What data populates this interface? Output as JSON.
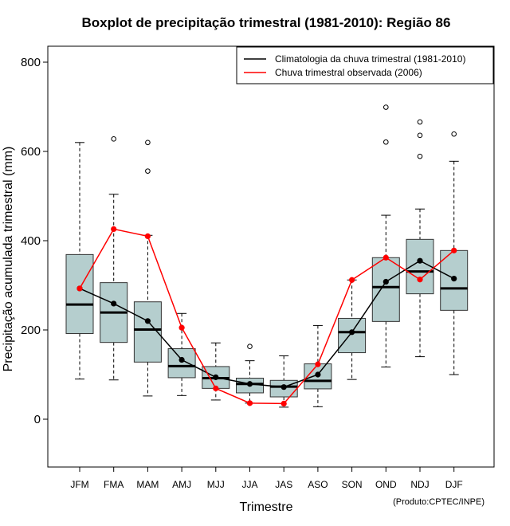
{
  "chart_data": {
    "type": "boxplot",
    "title": "Boxplot de precipitação trimestral (1981-2010): Região 86",
    "xlabel": "Trimestre",
    "ylabel": "Precipitação acumulada trimestral (mm)",
    "credit": "(Produto:CPTEC/INPE)",
    "ylim": [
      -110,
      830
    ],
    "yticks": [
      0,
      200,
      400,
      600,
      800
    ],
    "categories": [
      "JFM",
      "FMA",
      "MAM",
      "AMJ",
      "MJJ",
      "JJA",
      "JAS",
      "ASO",
      "SON",
      "OND",
      "NDJ",
      "DJF"
    ],
    "boxes": [
      {
        "whisker_low": 90,
        "q1": 192,
        "median": 257,
        "q3": 369,
        "whisker_high": 620,
        "outliers": []
      },
      {
        "whisker_low": 88,
        "q1": 172,
        "median": 239,
        "q3": 306,
        "whisker_high": 504,
        "outliers": [
          628
        ]
      },
      {
        "whisker_low": 52,
        "q1": 128,
        "median": 201,
        "q3": 263,
        "whisker_high": 412,
        "outliers": [
          556,
          620
        ]
      },
      {
        "whisker_low": 53,
        "q1": 93,
        "median": 119,
        "q3": 158,
        "whisker_high": 237,
        "outliers": []
      },
      {
        "whisker_low": 43,
        "q1": 69,
        "median": 92,
        "q3": 118,
        "whisker_high": 171,
        "outliers": []
      },
      {
        "whisker_low": 36,
        "q1": 59,
        "median": 79,
        "q3": 92,
        "whisker_high": 131,
        "outliers": [
          163
        ]
      },
      {
        "whisker_low": 27,
        "q1": 50,
        "median": 73,
        "q3": 87,
        "whisker_high": 142,
        "outliers": []
      },
      {
        "whisker_low": 28,
        "q1": 68,
        "median": 86,
        "q3": 124,
        "whisker_high": 210,
        "outliers": []
      },
      {
        "whisker_low": 89,
        "q1": 149,
        "median": 195,
        "q3": 226,
        "whisker_high": 312,
        "outliers": []
      },
      {
        "whisker_low": 117,
        "q1": 219,
        "median": 296,
        "q3": 362,
        "whisker_high": 457,
        "outliers": [
          621,
          699
        ]
      },
      {
        "whisker_low": 140,
        "q1": 281,
        "median": 331,
        "q3": 403,
        "whisker_high": 471,
        "outliers": [
          589,
          636,
          666
        ]
      },
      {
        "whisker_low": 100,
        "q1": 244,
        "median": 293,
        "q3": 378,
        "whisker_high": 578,
        "outliers": [
          639
        ]
      }
    ],
    "series": [
      {
        "name": "Climatologia da chuva trimestral (1981-2010)",
        "color": "#000000",
        "values": [
          293,
          259,
          220,
          133,
          94,
          79,
          72,
          100,
          195,
          308,
          355,
          315
        ]
      },
      {
        "name": "Chuva trimestral observada (2006)",
        "color": "#ff0000",
        "values": [
          293,
          426,
          410,
          205,
          69,
          36,
          35,
          123,
          312,
          362,
          313,
          378
        ]
      }
    ],
    "box_fill": "#b5cece"
  }
}
